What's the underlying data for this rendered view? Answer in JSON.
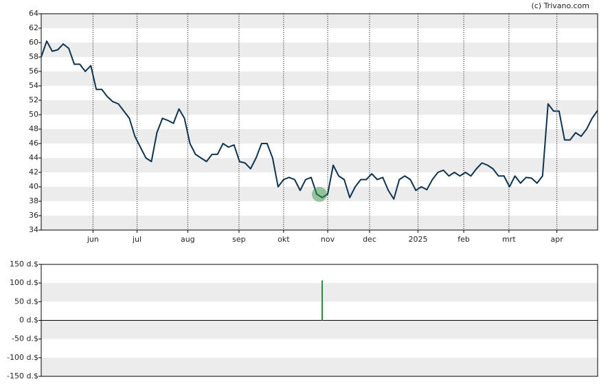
{
  "credit": "(c) Trivano.com",
  "chart_data": [
    {
      "type": "line",
      "color": "#0d3350",
      "values": [
        58,
        60.2,
        58.8,
        59,
        59.8,
        59.2,
        57,
        57,
        56,
        56.8,
        53.5,
        53.5,
        52.5,
        51.8,
        51.5,
        50.5,
        49.5,
        47,
        45.5,
        44,
        43.5,
        47.5,
        49.5,
        49.2,
        48.8,
        50.8,
        49.5,
        46,
        44.5,
        44,
        43.5,
        44.5,
        44.5,
        46,
        45.5,
        45.8,
        43.5,
        43.3,
        42.5,
        44,
        46,
        46,
        44,
        40,
        41,
        41.3,
        41,
        39.5,
        41,
        41.3,
        39,
        38.5,
        39,
        43,
        41.5,
        41,
        38.5,
        40,
        41,
        41,
        41.8,
        41,
        41.3,
        39.5,
        38.3,
        41,
        41.5,
        41,
        39.5,
        40,
        39.6,
        41,
        42,
        42.3,
        41.5,
        42,
        41.5,
        42,
        41.5,
        42.5,
        43.3,
        43,
        42.5,
        41.5,
        41.5,
        40,
        41.5,
        40.5,
        41.3,
        41.2,
        40.5,
        41.5,
        51.5,
        50.5,
        50.5,
        46.5,
        46.5,
        47.5,
        47,
        48,
        49.5,
        50.6
      ],
      "xlim": [
        0,
        101
      ],
      "xticks": [
        {
          "value": 9.4,
          "label": "jun"
        },
        {
          "value": 17.4,
          "label": "jul"
        },
        {
          "value": 26.6,
          "label": "aug"
        },
        {
          "value": 35.9,
          "label": "sep"
        },
        {
          "value": 44,
          "label": "okt"
        },
        {
          "value": 52,
          "label": "nov"
        },
        {
          "value": 59.6,
          "label": "dec"
        },
        {
          "value": 68.4,
          "label": "2025"
        },
        {
          "value": 76.7,
          "label": "feb"
        },
        {
          "value": 84.9,
          "label": "mrt"
        },
        {
          "value": 93.6,
          "label": "apr"
        }
      ],
      "ylim": [
        34,
        64
      ],
      "yticks": [
        34,
        36,
        38,
        40,
        42,
        44,
        46,
        48,
        50,
        52,
        54,
        56,
        58,
        60,
        62,
        64
      ],
      "grid": true
    },
    {
      "type": "bar",
      "color": "#2e8b3a",
      "x": [
        51
      ],
      "values": [
        107
      ],
      "xlim": [
        0,
        101
      ],
      "ylim": [
        -150,
        150
      ],
      "yticks": [
        {
          "value": -150,
          "label": "-150 d.$"
        },
        {
          "value": -100,
          "label": "-100 d.$"
        },
        {
          "value": -50,
          "label": "-50 d.$"
        },
        {
          "value": 0,
          "label": "0 d.$"
        },
        {
          "value": 50,
          "label": "50 d.$"
        },
        {
          "value": 100,
          "label": "100 d.$"
        },
        {
          "value": 150,
          "label": "150 d.$"
        }
      ],
      "grid": true
    }
  ]
}
